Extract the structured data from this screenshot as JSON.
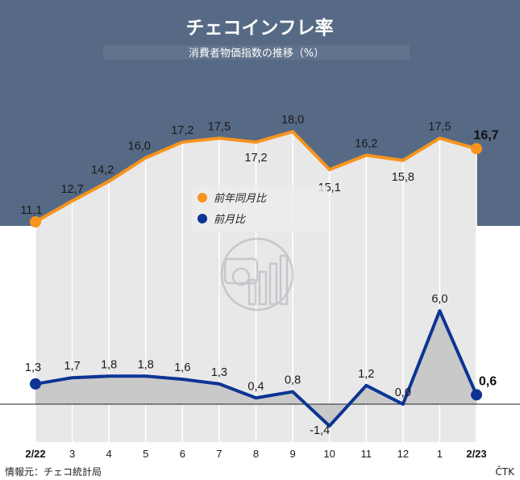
{
  "title": "チェコインフレ率",
  "subtitle": "消費者物価指数の推移（%）",
  "source": "情報元：チェコ統計局",
  "credit": "ČTK",
  "colors": {
    "header_bg": "#566a86",
    "yoy_line": "#f7941d",
    "mom_line": "#0d3494",
    "area_fill": "#e8e8e8",
    "mom_fill": "#c9c9c9"
  },
  "chart_data": {
    "type": "line",
    "categories": [
      "2/22",
      "3",
      "4",
      "5",
      "6",
      "7",
      "8",
      "9",
      "10",
      "11",
      "12",
      "1",
      "2/23"
    ],
    "series": [
      {
        "name": "前年同月比",
        "values": [
          11.1,
          12.7,
          14.2,
          16.0,
          17.2,
          17.5,
          17.2,
          18.0,
          15.1,
          16.2,
          15.8,
          17.5,
          16.7
        ],
        "labels": [
          "11,1",
          "12,7",
          "14,2",
          "16,0",
          "17,2",
          "17,5",
          "17,2",
          "18,0",
          "15,1",
          "16,2",
          "15,8",
          "17,5",
          "16,7"
        ]
      },
      {
        "name": "前月比",
        "values": [
          1.3,
          1.7,
          1.8,
          1.8,
          1.6,
          1.3,
          0.4,
          0.8,
          -1.4,
          1.2,
          0.0,
          6.0,
          0.6
        ],
        "labels": [
          "1,3",
          "1,7",
          "1,8",
          "1,8",
          "1,6",
          "1,3",
          "0,4",
          "0,8",
          "-1,4",
          "1,2",
          "0,0",
          "6,0",
          "0,6"
        ]
      }
    ],
    "legend_position": "center",
    "grid": false,
    "xlabel": "",
    "ylabel": ""
  }
}
